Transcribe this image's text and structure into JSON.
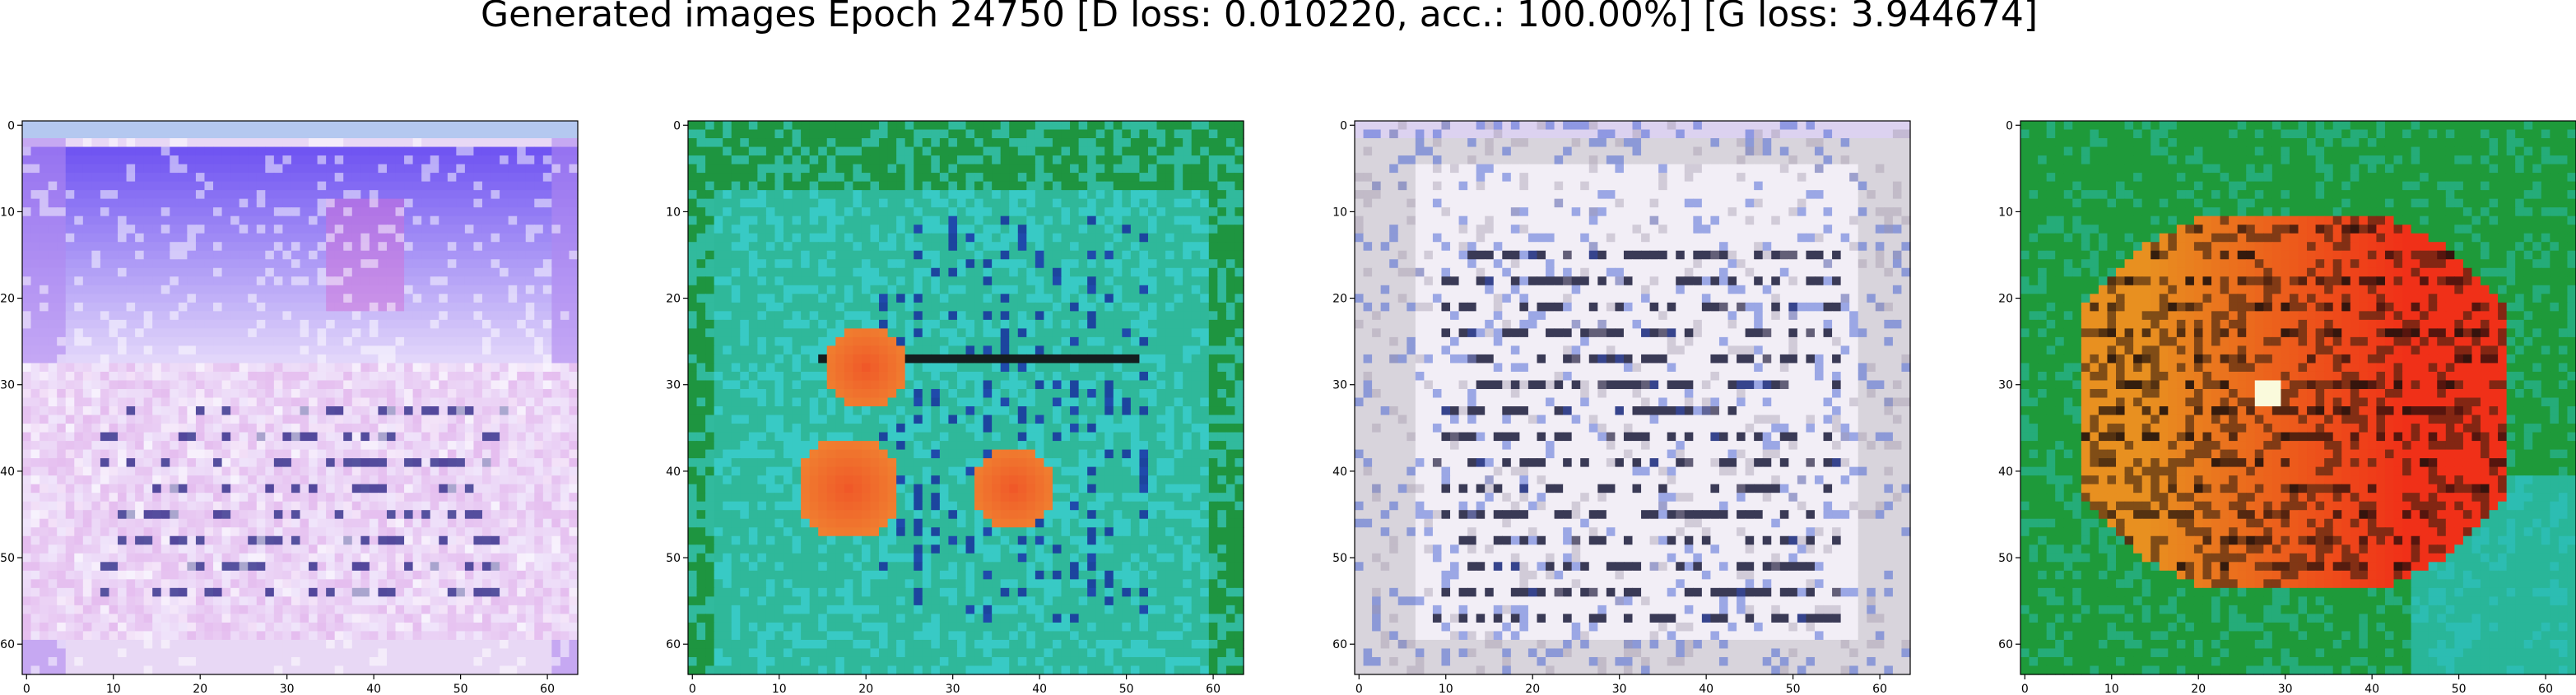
{
  "figure": {
    "title": "Generated images Epoch 24750 [D loss: 0.010220, acc.: 100.00%] [G loss: 3.944674]"
  },
  "chart_data": [
    {
      "type": "heatmap",
      "title": "",
      "xlabel": "",
      "ylabel": "",
      "xlim": [
        -0.5,
        63.5
      ],
      "ylim": [
        63.5,
        -0.5
      ],
      "xticks": [
        "0",
        "10",
        "20",
        "30",
        "40",
        "50",
        "60"
      ],
      "yticks": [
        "0",
        "10",
        "20",
        "30",
        "40",
        "50",
        "60"
      ],
      "image_description_colors": {
        "background": "#e8d8f5",
        "band_top": "#5a3cf0",
        "band_mid": "#f0e6fb",
        "accent": "#d070d8",
        "edge": "#b088f0"
      }
    },
    {
      "type": "heatmap",
      "title": "",
      "xlabel": "",
      "ylabel": "",
      "xlim": [
        -0.5,
        63.5
      ],
      "ylim": [
        63.5,
        -0.5
      ],
      "xticks": [
        "0",
        "10",
        "20",
        "30",
        "40",
        "50",
        "60"
      ],
      "yticks": [
        "0",
        "10",
        "20",
        "30",
        "40",
        "50",
        "60"
      ],
      "image_description_colors": {
        "background": "#2fb89a",
        "frame": "#1a8c2a",
        "highlight": "#40d8e8",
        "blob": "#f05828",
        "blob_core": "#f08030"
      }
    },
    {
      "type": "heatmap",
      "title": "",
      "xlabel": "",
      "ylabel": "",
      "xlim": [
        -0.5,
        63.5
      ],
      "ylim": [
        63.5,
        -0.5
      ],
      "xticks": [
        "0",
        "10",
        "20",
        "30",
        "40",
        "50",
        "60"
      ],
      "yticks": [
        "0",
        "10",
        "20",
        "30",
        "40",
        "50",
        "60"
      ],
      "image_description_colors": {
        "background": "#d8d4dc",
        "paper": "#f2eef6",
        "lines": "#1a1a3a",
        "accent": "#3050d0"
      }
    },
    {
      "type": "heatmap",
      "title": "",
      "xlabel": "",
      "ylabel": "",
      "xlim": [
        -0.5,
        63.5
      ],
      "ylim": [
        63.5,
        -0.5
      ],
      "xticks": [
        "0",
        "10",
        "20",
        "30",
        "40",
        "50",
        "60"
      ],
      "yticks": [
        "0",
        "10",
        "20",
        "30",
        "40",
        "50",
        "60"
      ],
      "image_description_colors": {
        "background": "#1e9a3a",
        "blob": "#f03018",
        "blob_upper": "#e89020",
        "cyan": "#30c8d8",
        "dark": "#3a2010"
      }
    }
  ]
}
